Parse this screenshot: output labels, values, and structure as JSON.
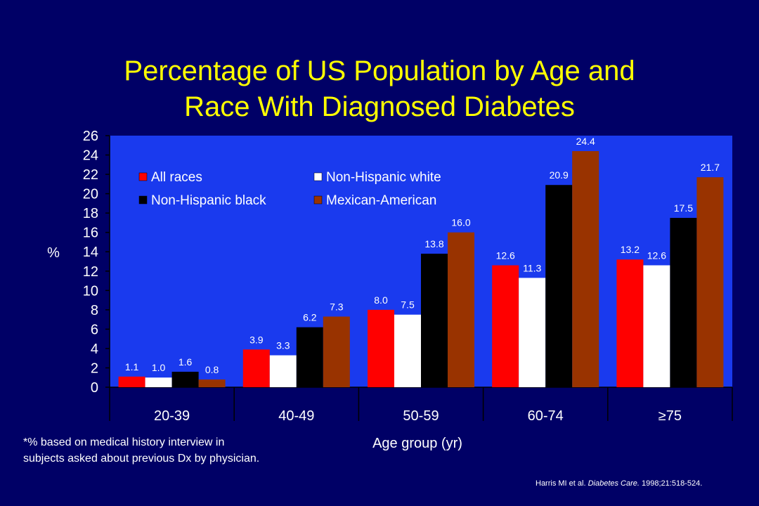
{
  "title_line1": "Percentage of US Population by Age and",
  "title_line2": "Race With Diagnosed Diabetes",
  "footnote_line1": "*% based on medical history interview in",
  "footnote_line2": "subjects asked about previous Dx by physician.",
  "citation": {
    "authors": "Harris MI et al. ",
    "journal": "Diabetes Care.",
    "details": " 1998;21:518-524."
  },
  "colors": {
    "background": "#000066",
    "plot_area": "#1a3aee",
    "title": "#ffff00"
  },
  "chart_data": {
    "type": "bar",
    "title": "Percentage of US Population by Age and Race With Diagnosed Diabetes",
    "xlabel": "Age group (yr)",
    "ylabel": "%",
    "ylim": [
      0,
      26
    ],
    "yticks": [
      0,
      2,
      4,
      6,
      8,
      10,
      12,
      14,
      16,
      18,
      20,
      22,
      24,
      26
    ],
    "categories": [
      "20-39",
      "40-49",
      "50-59",
      "60-74",
      "≥75"
    ],
    "legend_position": "top-left inside plot",
    "series": [
      {
        "name": "All races",
        "color": "#ff0000",
        "values": [
          1.1,
          3.9,
          8.0,
          12.6,
          13.2
        ],
        "labels": [
          "1.1",
          "3.9",
          "8.0",
          "12.6",
          "13.2"
        ]
      },
      {
        "name": "Non-Hispanic white",
        "color": "#ffffff",
        "values": [
          1.0,
          3.3,
          7.5,
          11.3,
          12.6
        ],
        "labels": [
          "1.0",
          "3.3",
          "7.5",
          "11.3",
          "12.6"
        ]
      },
      {
        "name": "Non-Hispanic black",
        "color": "#000000",
        "values": [
          1.6,
          6.2,
          13.8,
          20.9,
          17.5
        ],
        "labels": [
          "1.6",
          "6.2",
          "13.8",
          "20.9",
          "17.5"
        ]
      },
      {
        "name": "Mexican-American",
        "color": "#993300",
        "values": [
          0.8,
          7.3,
          16.0,
          24.4,
          21.7
        ],
        "labels": [
          "0.8",
          "7.3",
          "16.0",
          "24.4",
          "21.7"
        ]
      }
    ]
  }
}
